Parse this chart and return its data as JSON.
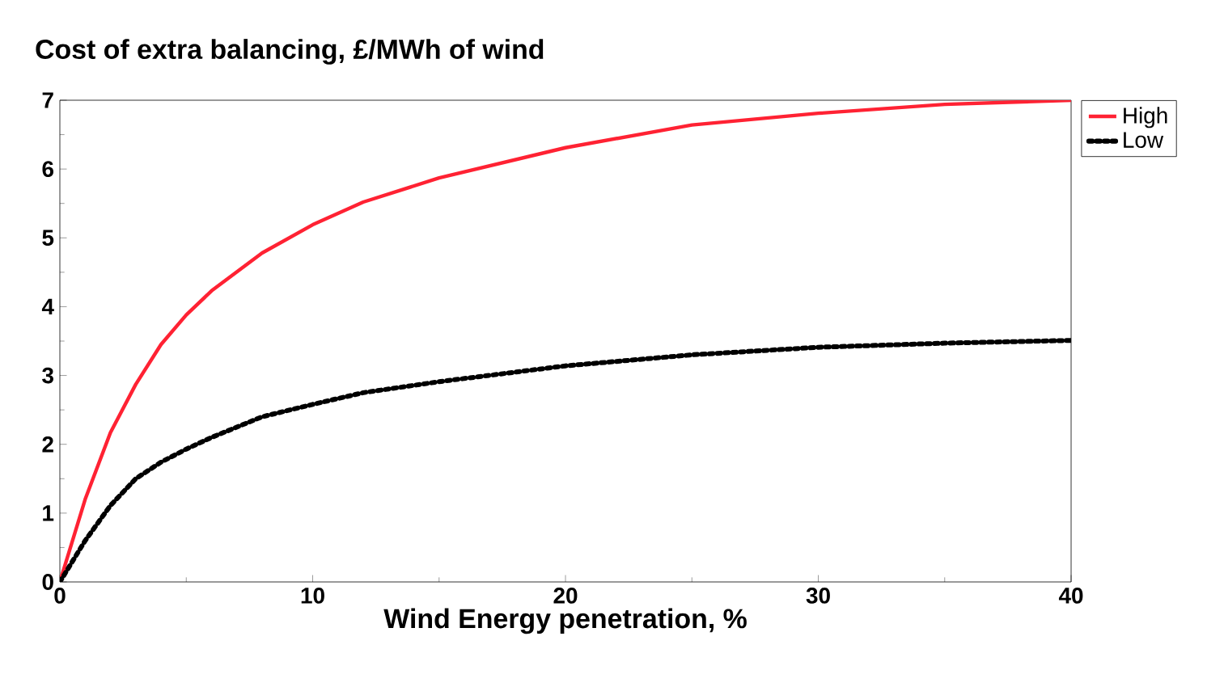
{
  "chart_data": {
    "type": "line",
    "title": "Cost of extra balancing, £/MWh of wind",
    "xlabel": "Wind Energy penetration, %",
    "x": [
      0,
      1,
      2,
      3,
      4,
      5,
      6,
      8,
      10,
      12,
      15,
      20,
      25,
      30,
      35,
      40
    ],
    "series": [
      {
        "name": "High",
        "color": "#ff2233",
        "line_style": "solid",
        "values": [
          0,
          1.2,
          2.17,
          2.87,
          3.45,
          3.88,
          4.23,
          4.78,
          5.19,
          5.52,
          5.87,
          6.31,
          6.64,
          6.81,
          6.94,
          7.0
        ]
      },
      {
        "name": "Low",
        "color": "#000000",
        "line_style": "dotted",
        "values": [
          0,
          0.6,
          1.11,
          1.5,
          1.74,
          1.93,
          2.1,
          2.4,
          2.58,
          2.75,
          2.91,
          3.14,
          3.3,
          3.41,
          3.47,
          3.51
        ]
      }
    ],
    "xlim": [
      0,
      40
    ],
    "ylim": [
      0,
      7
    ],
    "xticks": [
      0,
      10,
      20,
      30,
      40
    ],
    "yticks": [
      0,
      1,
      2,
      3,
      4,
      5,
      6,
      7
    ],
    "grid": false,
    "legend": "top right",
    "marker": "none"
  }
}
